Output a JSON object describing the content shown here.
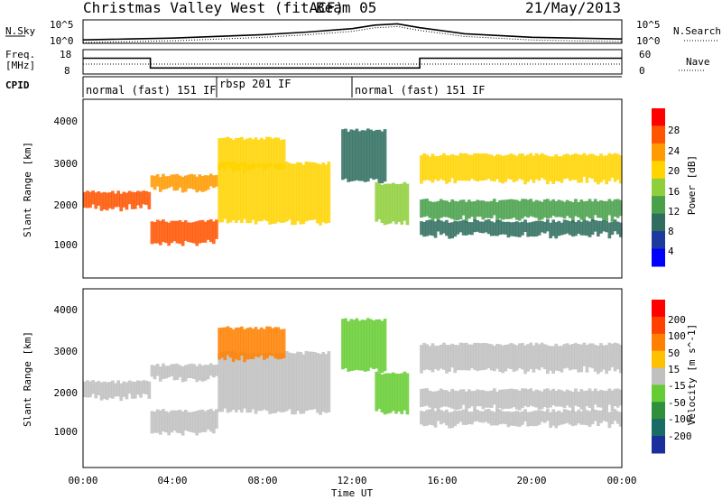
{
  "header": {
    "title": "Christmas Valley West (fitACF)",
    "beam": "Beam 05",
    "date": "21/May/2013"
  },
  "noise_panel": {
    "left_label": "N.Sky",
    "right_label": "N.Search",
    "left_ticks": [
      "10^5",
      "10^0"
    ],
    "right_ticks": [
      "10^5",
      "10^0"
    ]
  },
  "freq_panel": {
    "left_label_1": "Freq.",
    "left_label_2": "[MHz]",
    "right_label": "Nave",
    "left_ticks": [
      "18",
      "8"
    ],
    "right_ticks": [
      "60",
      "0"
    ]
  },
  "cpid": {
    "label": "CPID",
    "segments": [
      {
        "label": "normal (fast) 151 IF",
        "start": 0,
        "end": 6
      },
      {
        "label": "rbsp 201 IF",
        "start": 6,
        "end": 12
      },
      {
        "label": "normal (fast) 151 IF",
        "start": 12,
        "end": 24
      }
    ]
  },
  "power_panel": {
    "ylabel": "Slant Range [km]",
    "yticks": [
      "4000",
      "3000",
      "2000",
      "1000"
    ],
    "colorbar_label": "Power [dB]",
    "colorbar_ticks": [
      "28",
      "24",
      "20",
      "16",
      "12",
      "8",
      "4"
    ],
    "colors": [
      "#0000ff",
      "#1c3b9c",
      "#2f6e5f",
      "#48a04a",
      "#8fcf3b",
      "#ffd400",
      "#ff9a00",
      "#ff5500",
      "#ff0000"
    ]
  },
  "velocity_panel": {
    "ylabel": "Slant Range [km]",
    "yticks": [
      "4000",
      "3000",
      "2000",
      "1000"
    ],
    "colorbar_label": "Velocity [m s^-1]",
    "colorbar_ticks": [
      "200",
      "100",
      "50",
      "15",
      "-15",
      "-50",
      "-100",
      "-200"
    ],
    "colors": [
      "#1a2f9c",
      "#1a6a66",
      "#2f8f3a",
      "#66cc33",
      "#c0c0c0",
      "#ffc000",
      "#ff8000",
      "#ff4000",
      "#ff0000"
    ]
  },
  "xaxis": {
    "label": "Time UT",
    "ticks": [
      "00:00",
      "04:00",
      "08:00",
      "12:00",
      "16:00",
      "20:00",
      "00:00"
    ]
  },
  "chart_data": {
    "type": "heatmap",
    "title": "Christmas Valley West (fitACF)",
    "xlabel": "Time UT",
    "ylabel": "Slant Range [km]",
    "xlim": [
      0,
      24
    ],
    "ylim": [
      180,
      4500
    ],
    "power_bands": [
      {
        "t0": 0,
        "t1": 3,
        "r0": 1850,
        "r1": 2300,
        "dB": 26
      },
      {
        "t0": 3.0,
        "t1": 6.0,
        "r0": 1000,
        "r1": 1600,
        "dB": 27
      },
      {
        "t0": 3.0,
        "t1": 6.0,
        "r0": 2300,
        "r1": 2700,
        "dB": 24
      },
      {
        "t0": 6,
        "t1": 11,
        "r0": 1500,
        "r1": 3000,
        "dB": 18
      },
      {
        "t0": 6,
        "t1": 9,
        "r0": 2800,
        "r1": 3600,
        "dB": 20
      },
      {
        "t0": 11.5,
        "t1": 13.5,
        "r0": 2500,
        "r1": 3800,
        "dB": 8
      },
      {
        "t0": 13,
        "t1": 14.5,
        "r0": 1500,
        "r1": 2500,
        "dB": 14
      },
      {
        "t0": 15,
        "t1": 24,
        "r0": 2500,
        "r1": 3200,
        "dB": 18
      },
      {
        "t0": 15,
        "t1": 24,
        "r0": 1600,
        "r1": 2100,
        "dB": 12
      },
      {
        "t0": 15,
        "t1": 24,
        "r0": 1200,
        "r1": 1600,
        "dB": 8
      }
    ],
    "noise_sky_log": [
      0.8,
      1.0,
      1.2,
      1.6,
      2.0,
      2.6,
      3.4,
      4.2,
      4.5,
      3.6,
      2.2,
      1.4,
      1.0
    ],
    "noise_time": [
      0,
      2,
      4,
      6,
      8,
      10,
      12,
      13,
      14,
      15,
      17,
      20,
      24
    ],
    "freq_mhz_segments": [
      {
        "t0": 0,
        "t1": 3,
        "mhz": 14.5
      },
      {
        "t0": 3,
        "t1": 15,
        "mhz": 10.5
      },
      {
        "t0": 15,
        "t1": 24,
        "mhz": 14.5
      }
    ]
  }
}
